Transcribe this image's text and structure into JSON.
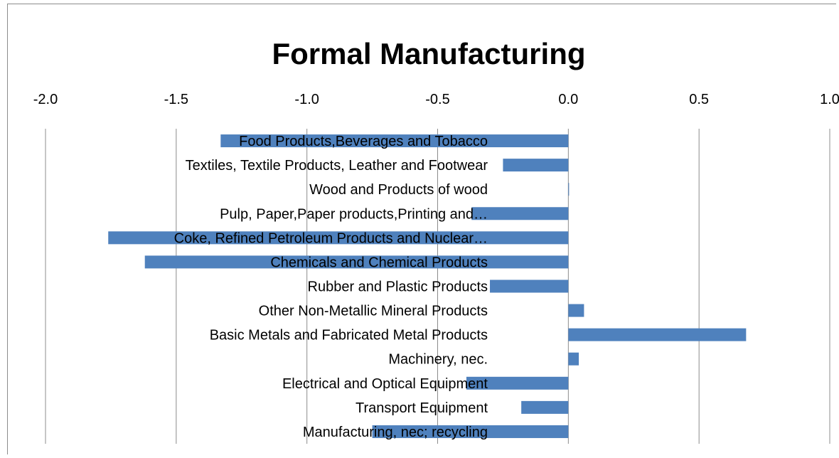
{
  "chart_data": {
    "type": "bar",
    "orientation": "horizontal",
    "title": "Formal Manufacturing",
    "xlabel": "",
    "ylabel": "",
    "xlim": [
      -2.0,
      1.0
    ],
    "x_ticks": [
      "-2.0",
      "-1.5",
      "-1.0",
      "-0.5",
      "0.0",
      "0.5",
      "1.0"
    ],
    "x_tick_values": [
      -2.0,
      -1.5,
      -1.0,
      -0.5,
      0.0,
      0.5,
      1.0
    ],
    "grid": true,
    "legend": "none",
    "bar_color": "#4f81bd",
    "categories": [
      "Food Products,Beverages and Tobacco",
      "Textiles, Textile Products, Leather and Footwear",
      "Wood and Products of wood",
      "Pulp, Paper,Paper products,Printing and…",
      "Coke, Refined Petroleum Products and Nuclear…",
      "Chemicals and  Chemical Products",
      "Rubber and Plastic Products",
      "Other Non-Metallic Mineral Products",
      "Basic Metals and Fabricated Metal Products",
      "Machinery, nec.",
      "Electrical and Optical Equipment",
      "Transport Equipment",
      "Manufacturing, nec; recycling"
    ],
    "values": [
      -1.33,
      -0.25,
      0.0,
      -0.37,
      -1.76,
      -1.62,
      -0.3,
      0.06,
      0.68,
      0.04,
      -0.39,
      -0.18,
      -0.75
    ]
  }
}
